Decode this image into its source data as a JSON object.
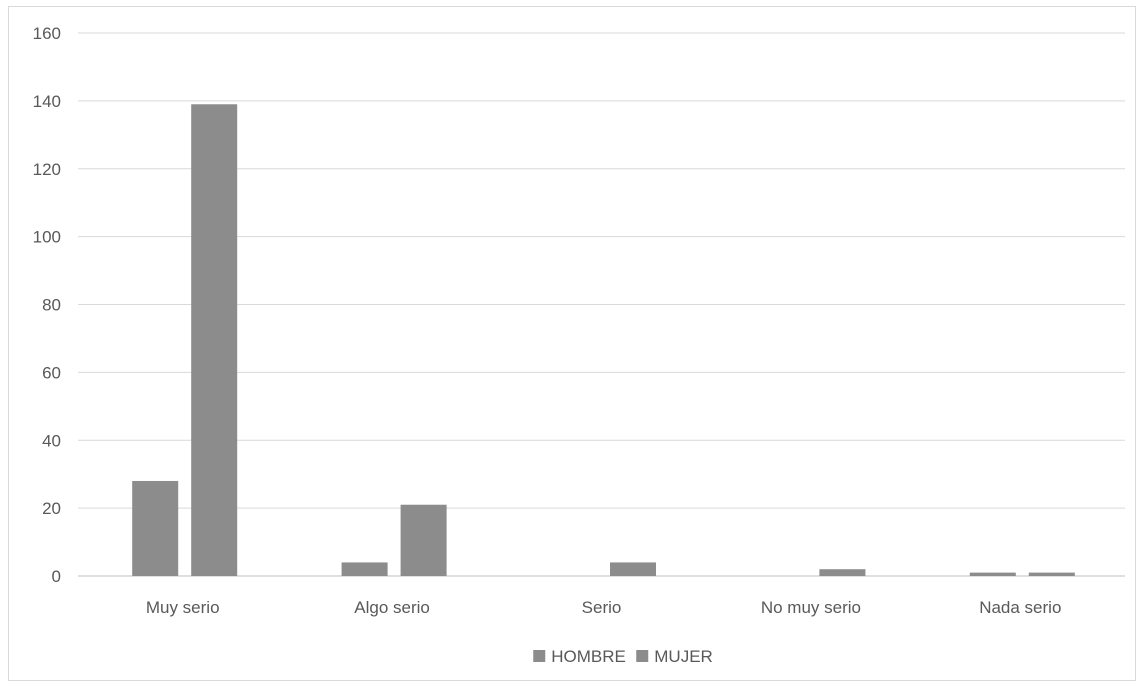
{
  "chart_data": {
    "type": "bar",
    "title": "",
    "xlabel": "",
    "ylabel": "",
    "categories": [
      "Muy serio",
      "Algo serio",
      "Serio",
      "No muy serio",
      "Nada serio"
    ],
    "series": [
      {
        "name": "HOMBRE",
        "values": [
          28,
          4,
          0,
          0,
          1
        ],
        "color": "#8c8c8c"
      },
      {
        "name": "MUJER",
        "values": [
          139,
          21,
          4,
          2,
          1
        ],
        "color": "#8c8c8c"
      }
    ],
    "ylim": [
      0,
      160
    ],
    "yticks": [
      "0",
      "20",
      "40",
      "60",
      "80",
      "100",
      "120",
      "140",
      "160"
    ],
    "grid": true,
    "legend_position": "bottom",
    "colors": {
      "grid": "#d9d9d9",
      "axis": "#bfbfbf",
      "text": "#595959",
      "bar": "#8c8c8c"
    }
  }
}
